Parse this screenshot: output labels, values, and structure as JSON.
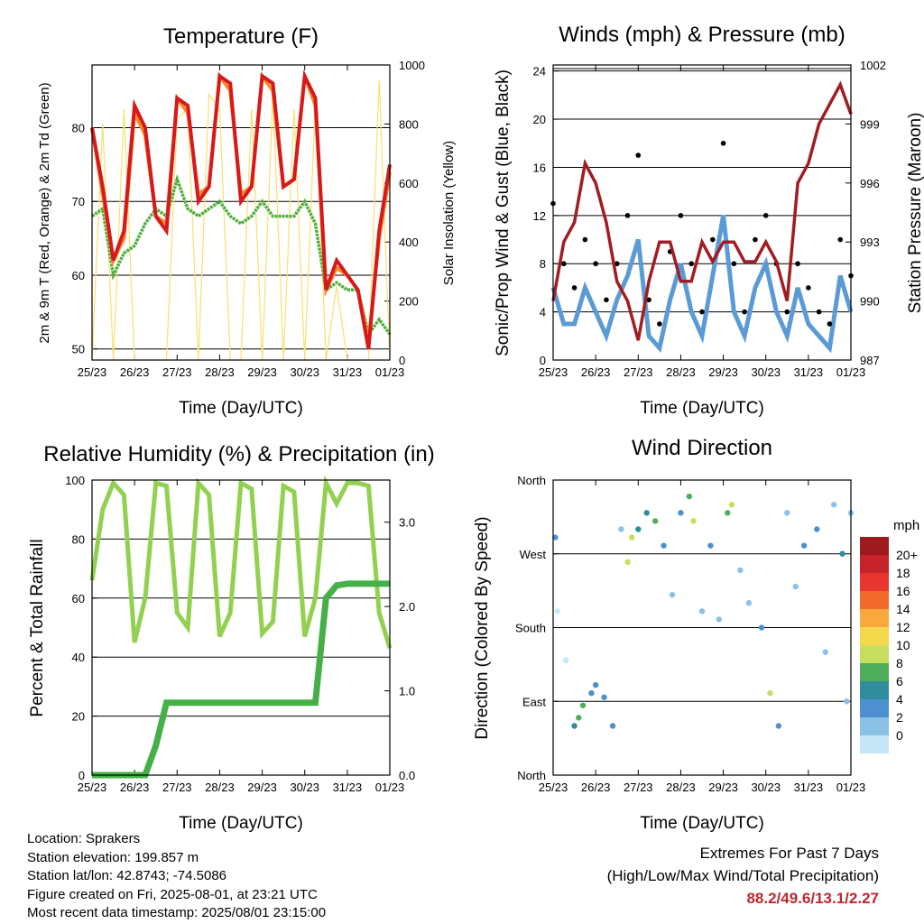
{
  "colors": {
    "temp2m": "#d7191c",
    "temp9m": "#f58c28",
    "dewpoint": "#4caf3a",
    "solar": "#f9df72",
    "wind": "#5b9bd5",
    "gust": "#000000",
    "pressure": "#a11d21",
    "rh": "#92d050",
    "precip": "#44b047",
    "extremes": "#c0272d"
  },
  "x_ticks": [
    "25/23",
    "26/23",
    "27/23",
    "28/23",
    "29/23",
    "30/23",
    "31/23",
    "01/23"
  ],
  "x_label": "Time (Day/UTC)",
  "panels": {
    "temperature": {
      "title": "Temperature (F)",
      "ylabel_left": "2m & 9m T (Red, Orange) & 2m Td (Green)",
      "ylabel_right": "Solar Insolation (Yellow)"
    },
    "winds": {
      "title": "Winds (mph) & Pressure (mb)",
      "ylabel_left": "Sonic/Prop Wind & Gust (Blue, Black)",
      "ylabel_right": "Station Pressure (Maroon)"
    },
    "humidity": {
      "title": "Relative Humidity (%) & Precipitation (in)",
      "ylabel_left": "Percent & Total Rainfall"
    },
    "direction": {
      "title": "Wind Direction",
      "ylabel_left": "Direction (Colored By Speed)",
      "colorbar_title": "mph",
      "colorbar_labels": [
        "20+",
        "18",
        "16",
        "14",
        "12",
        "10",
        "8",
        "6",
        "4",
        "2",
        "0"
      ],
      "colorbar_colors": [
        "#9e1a1f",
        "#c6232a",
        "#e8362f",
        "#f4692e",
        "#f8a83c",
        "#f5d84c",
        "#c8de5f",
        "#4fae5a",
        "#2f8d9e",
        "#4e8fcf",
        "#8cc1e6",
        "#c5e6f7"
      ]
    }
  },
  "chart_data": [
    {
      "type": "line",
      "title": "Temperature (F)",
      "xlabel": "Time (Day/UTC)",
      "ylabel": "2m & 9m T (Red, Orange) & 2m Td (Green)",
      "ylabel_right": "Solar Insolation (Yellow)",
      "x": [
        0,
        0.25,
        0.5,
        0.75,
        1,
        1.25,
        1.5,
        1.75,
        2,
        2.25,
        2.5,
        2.75,
        3,
        3.25,
        3.5,
        3.75,
        4,
        4.25,
        4.5,
        4.75,
        5,
        5.25,
        5.5,
        5.75,
        6,
        6.25,
        6.5,
        6.75,
        7
      ],
      "x_ticks": [
        "25/23",
        "26/23",
        "27/23",
        "28/23",
        "29/23",
        "30/23",
        "31/23",
        "01/23"
      ],
      "ylim": [
        48.5,
        88.5
      ],
      "ylim_right": [
        0,
        1000
      ],
      "yticks": [
        50,
        60,
        70,
        80
      ],
      "yticks_right": [
        0,
        200,
        400,
        600,
        800,
        1000
      ],
      "series": [
        {
          "name": "2m T",
          "values": [
            80,
            72,
            62,
            66,
            83,
            80,
            68,
            66,
            84,
            83,
            70,
            72,
            87,
            86,
            70,
            72,
            87,
            86,
            72,
            73,
            87,
            84,
            58,
            62,
            60,
            58,
            50,
            66,
            75
          ]
        },
        {
          "name": "9m T",
          "values": [
            80,
            71,
            62,
            65,
            82,
            79,
            68,
            67,
            84,
            82,
            71,
            72,
            87,
            85,
            71,
            72,
            87,
            85,
            72,
            73,
            87,
            83,
            58,
            61,
            60,
            58,
            51,
            65,
            74
          ]
        },
        {
          "name": "2m Td",
          "values": [
            68,
            69,
            60,
            63,
            64,
            67,
            69,
            68,
            73,
            69,
            68,
            69,
            70,
            68,
            67,
            68,
            70,
            68,
            68,
            68,
            70,
            67,
            58,
            59,
            58,
            58,
            52,
            54,
            52
          ]
        },
        {
          "name": "Solar Insolation",
          "axis": "right",
          "values": [
            0,
            800,
            0,
            850,
            0,
            0,
            0,
            0,
            820,
            850,
            0,
            900,
            850,
            0,
            0,
            850,
            0,
            900,
            0,
            850,
            0,
            880,
            0,
            250,
            0,
            0,
            0,
            950,
            0
          ]
        }
      ]
    },
    {
      "type": "line",
      "title": "Winds (mph) & Pressure (mb)",
      "xlabel": "Time (Day/UTC)",
      "ylabel": "Sonic/Prop Wind & Gust (Blue, Black)",
      "ylabel_right": "Station Pressure (Maroon)",
      "x": [
        0,
        0.25,
        0.5,
        0.75,
        1,
        1.25,
        1.5,
        1.75,
        2,
        2.25,
        2.5,
        2.75,
        3,
        3.25,
        3.5,
        3.75,
        4,
        4.25,
        4.5,
        4.75,
        5,
        5.25,
        5.5,
        5.75,
        6,
        6.25,
        6.5,
        6.75,
        7
      ],
      "x_ticks": [
        "25/23",
        "26/23",
        "27/23",
        "28/23",
        "29/23",
        "30/23",
        "31/23",
        "01/23"
      ],
      "ylim": [
        0,
        24.5
      ],
      "ylim_right": [
        987,
        1002
      ],
      "yticks": [
        0,
        4,
        8,
        12,
        16,
        20,
        24
      ],
      "yticks_right": [
        987,
        990,
        993,
        996,
        999,
        1002
      ],
      "series": [
        {
          "name": "Wind",
          "values": [
            6,
            3,
            3,
            6,
            4,
            2,
            5,
            7,
            10,
            2,
            1,
            5,
            8,
            4,
            2,
            7,
            12,
            4,
            2,
            6,
            8,
            4,
            2,
            6,
            3,
            2,
            1,
            7,
            4
          ]
        },
        {
          "name": "Gust",
          "values": [
            13,
            8,
            6,
            10,
            8,
            5,
            8,
            12,
            17,
            5,
            3,
            9,
            12,
            8,
            4,
            10,
            18,
            8,
            4,
            10,
            12,
            8,
            4,
            8,
            6,
            4,
            3,
            10,
            7
          ]
        },
        {
          "name": "Station Pressure",
          "axis": "right",
          "values": [
            990,
            993,
            994,
            997,
            996,
            994,
            991,
            990,
            988,
            991,
            993,
            993,
            991,
            991,
            993,
            992,
            993,
            993,
            992,
            992,
            993,
            992,
            990,
            996,
            997,
            999,
            1000,
            1001,
            999.5
          ]
        }
      ]
    },
    {
      "type": "line",
      "title": "Relative Humidity (%) & Precipitation (in)",
      "xlabel": "Time (Day/UTC)",
      "ylabel": "Percent & Total Rainfall",
      "x": [
        0,
        0.25,
        0.5,
        0.75,
        1,
        1.25,
        1.5,
        1.75,
        2,
        2.25,
        2.5,
        2.75,
        3,
        3.25,
        3.5,
        3.75,
        4,
        4.25,
        4.5,
        4.75,
        5,
        5.25,
        5.5,
        5.75,
        6,
        6.25,
        6.5,
        6.75,
        7
      ],
      "x_ticks": [
        "25/23",
        "26/23",
        "27/23",
        "28/23",
        "29/23",
        "30/23",
        "31/23",
        "01/23"
      ],
      "ylim": [
        0,
        100
      ],
      "ylim_right": [
        0,
        3.5
      ],
      "yticks": [
        0,
        20,
        40,
        60,
        80,
        100
      ],
      "yticks_right": [
        0.0,
        1.0,
        2.0,
        3.0
      ],
      "series": [
        {
          "name": "Relative Humidity",
          "values": [
            66,
            90,
            99,
            95,
            45,
            60,
            99,
            98,
            55,
            50,
            99,
            95,
            47,
            55,
            99,
            97,
            48,
            52,
            98,
            96,
            47,
            60,
            99,
            92,
            99,
            99,
            98,
            55,
            43
          ]
        },
        {
          "name": "Total Precipitation",
          "axis": "right",
          "values": [
            0,
            0,
            0,
            0,
            0,
            0,
            0.35,
            0.86,
            0.86,
            0.86,
            0.86,
            0.86,
            0.86,
            0.86,
            0.86,
            0.86,
            0.86,
            0.86,
            0.86,
            0.86,
            0.86,
            0.86,
            2.1,
            2.25,
            2.27,
            2.27,
            2.27,
            2.27,
            2.27
          ]
        }
      ]
    },
    {
      "type": "scatter",
      "title": "Wind Direction",
      "xlabel": "Time (Day/UTC)",
      "ylabel": "Direction (Colored By Speed)",
      "x_ticks": [
        "25/23",
        "26/23",
        "27/23",
        "28/23",
        "29/23",
        "30/23",
        "31/23",
        "01/23"
      ],
      "ytick_labels": [
        "North",
        "East",
        "South",
        "West",
        "North"
      ],
      "ylim": [
        0,
        360
      ],
      "color_by": "speed (mph)",
      "points": [
        {
          "x": 0.05,
          "y": 290,
          "s": 5
        },
        {
          "x": 0.1,
          "y": 200,
          "s": 1
        },
        {
          "x": 0.3,
          "y": 140,
          "s": 1
        },
        {
          "x": 0.5,
          "y": 60,
          "s": 6
        },
        {
          "x": 0.6,
          "y": 70,
          "s": 8
        },
        {
          "x": 0.7,
          "y": 85,
          "s": 9
        },
        {
          "x": 0.9,
          "y": 100,
          "s": 5
        },
        {
          "x": 1.0,
          "y": 110,
          "s": 4
        },
        {
          "x": 1.2,
          "y": 95,
          "s": 5
        },
        {
          "x": 1.4,
          "y": 60,
          "s": 4
        },
        {
          "x": 1.6,
          "y": 300,
          "s": 3
        },
        {
          "x": 1.75,
          "y": 260,
          "s": 10
        },
        {
          "x": 1.85,
          "y": 290,
          "s": 11
        },
        {
          "x": 2.0,
          "y": 300,
          "s": 6
        },
        {
          "x": 2.2,
          "y": 320,
          "s": 7
        },
        {
          "x": 2.4,
          "y": 310,
          "s": 8
        },
        {
          "x": 2.6,
          "y": 280,
          "s": 5
        },
        {
          "x": 2.8,
          "y": 220,
          "s": 3
        },
        {
          "x": 3.0,
          "y": 320,
          "s": 4
        },
        {
          "x": 3.2,
          "y": 340,
          "s": 9
        },
        {
          "x": 3.3,
          "y": 310,
          "s": 11
        },
        {
          "x": 3.5,
          "y": 200,
          "s": 3
        },
        {
          "x": 3.7,
          "y": 280,
          "s": 4
        },
        {
          "x": 3.9,
          "y": 190,
          "s": 3
        },
        {
          "x": 4.1,
          "y": 320,
          "s": 9
        },
        {
          "x": 4.2,
          "y": 330,
          "s": 11
        },
        {
          "x": 4.4,
          "y": 250,
          "s": 3
        },
        {
          "x": 4.6,
          "y": 210,
          "s": 2
        },
        {
          "x": 4.9,
          "y": 180,
          "s": 4
        },
        {
          "x": 5.1,
          "y": 100,
          "s": 11
        },
        {
          "x": 5.3,
          "y": 60,
          "s": 4
        },
        {
          "x": 5.5,
          "y": 320,
          "s": 3
        },
        {
          "x": 5.7,
          "y": 230,
          "s": 2
        },
        {
          "x": 5.9,
          "y": 280,
          "s": 4
        },
        {
          "x": 6.2,
          "y": 300,
          "s": 5
        },
        {
          "x": 6.4,
          "y": 150,
          "s": 3
        },
        {
          "x": 6.6,
          "y": 330,
          "s": 3
        },
        {
          "x": 6.8,
          "y": 270,
          "s": 6
        },
        {
          "x": 6.9,
          "y": 90,
          "s": 3
        },
        {
          "x": 7.0,
          "y": 320,
          "s": 2
        }
      ]
    }
  ],
  "footer": {
    "location": "Location: Sprakers",
    "elevation": "Station elevation: 199.857 m",
    "latlon": "Station lat/lon: 42.8743; -74.5086",
    "created": "Figure created on Fri, 2025-08-01, at 23:21 UTC",
    "recent": "Most recent data timestamp: 2025/08/01 23:15:00"
  },
  "extremes": {
    "heading": "Extremes For Past 7 Days",
    "subheading": "(High/Low/Max Wind/Total Precipitation)",
    "values": "88.2/49.6/13.1/2.27"
  }
}
